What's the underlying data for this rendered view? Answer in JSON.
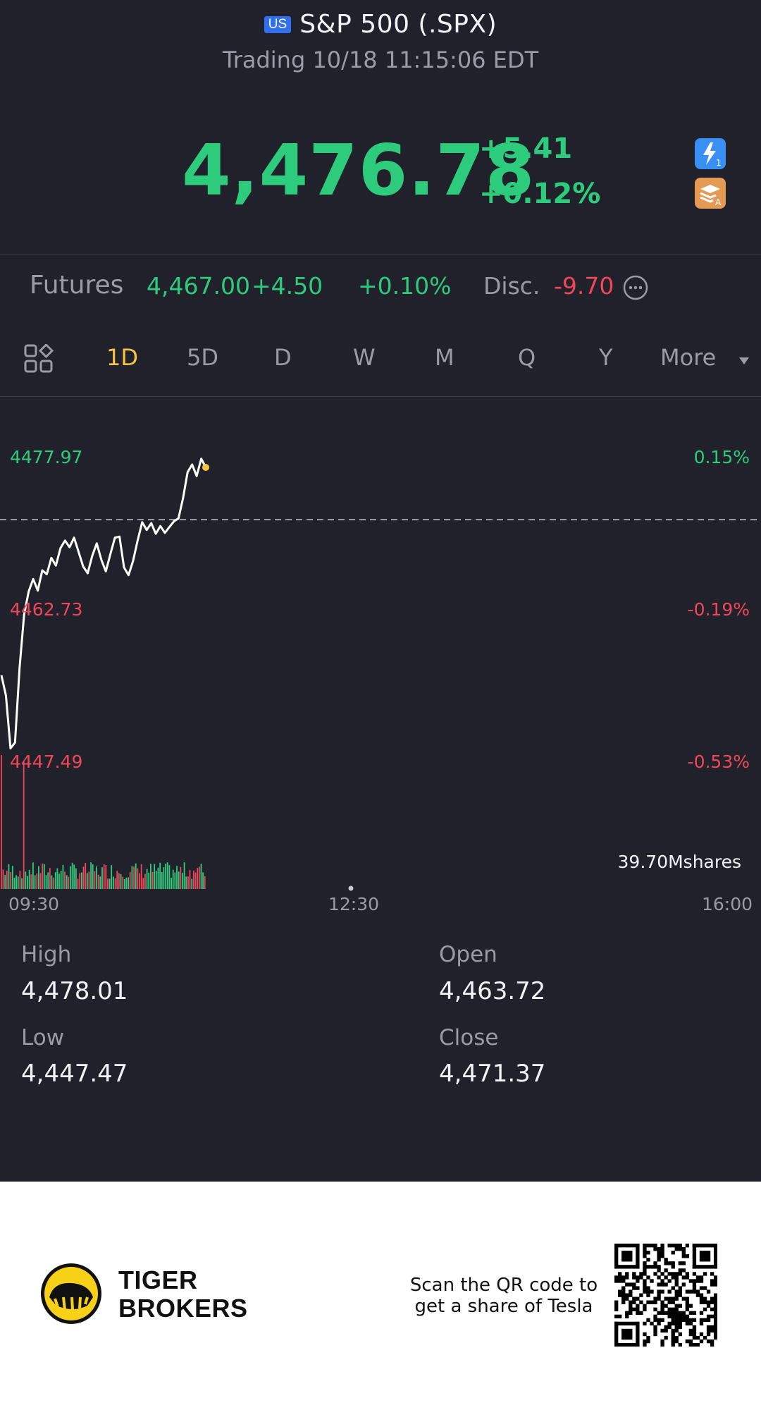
{
  "header": {
    "market_badge": "US",
    "title": "S&P 500 (.SPX)",
    "status": "Trading 10/18 11:15:06 EDT"
  },
  "quote": {
    "price": "4,476.78",
    "change": "+5.41",
    "change_pct": "+0.12%"
  },
  "futures": {
    "label": "Futures",
    "price": "4,467.00",
    "change": "+4.50",
    "change_pct": "+0.10%",
    "disc_label": "Disc.",
    "disc_value": "-9.70"
  },
  "tabs": [
    "1D",
    "5D",
    "D",
    "W",
    "M",
    "Q",
    "Y",
    "More"
  ],
  "active_tab": "1D",
  "chart": {
    "y_labels_left": [
      "4477.97",
      "4462.73",
      "4447.49"
    ],
    "y_labels_right": [
      "0.15%",
      "-0.19%",
      "-0.53%"
    ],
    "x_labels": [
      "09:30",
      "12:30",
      "16:00"
    ],
    "volume_label": "39.70Mshares",
    "prev_close": 4471.37
  },
  "chart_data": {
    "type": "line",
    "x_label_ticks": [
      "09:30",
      "12:30",
      "16:00"
    ],
    "ylim": [
      4447.49,
      4477.97
    ],
    "reference_line": 4471.37,
    "series": [
      {
        "values": [
          4455.2,
          4453.1,
          4447.6,
          4448.2,
          4456.0,
          4461.5,
          4463.9,
          4465.2,
          4464.0,
          4466.1,
          4465.7,
          4467.4,
          4466.6,
          4468.4,
          4469.2,
          4468.5,
          4469.5,
          4468.0,
          4466.5,
          4465.8,
          4467.6,
          4468.9,
          4467.2,
          4466.0,
          4467.8,
          4469.5,
          4469.6,
          4466.4,
          4465.6,
          4467.1,
          4469.2,
          4471.1,
          4470.3,
          4471.0,
          4469.9,
          4470.7,
          4470.0,
          4470.6,
          4471.2,
          4471.5,
          4473.6,
          4476.3,
          4477.1,
          4475.9,
          4477.7,
          4476.8
        ]
      }
    ],
    "last_point_color": "#f6c344"
  },
  "stats": {
    "high_label": "High",
    "high": "4,478.01",
    "low_label": "Low",
    "low": "4,447.47",
    "open_label": "Open",
    "open": "4,463.72",
    "close_label": "Close",
    "close": "4,471.37"
  },
  "footer": {
    "brand_line1": "TIGER",
    "brand_line2": "BROKERS",
    "promo_line1": "Scan the QR code to",
    "promo_line2": "get a share of Tesla"
  },
  "colors": {
    "up": "#2dcc7d",
    "down": "#f0465a",
    "active_tab": "#f6c344",
    "background": "#21212b"
  }
}
